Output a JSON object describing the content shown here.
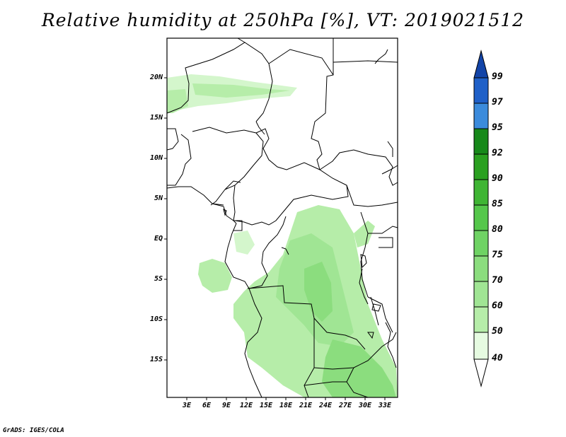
{
  "title": "Relative humidity at 250hPa [%], VT: 2019021512",
  "credit": "GrADS: IGES/COLA",
  "map": {
    "lat_labels": [
      "20N",
      "15N",
      "10N",
      "5N",
      "EQ",
      "5S",
      "10S",
      "15S"
    ],
    "lon_labels": [
      "3E",
      "6E",
      "9E",
      "12E",
      "15E",
      "18E",
      "21E",
      "24E",
      "27E",
      "30E",
      "33E"
    ]
  },
  "colorbar": {
    "levels": [
      "40",
      "50",
      "60",
      "70",
      "75",
      "80",
      "85",
      "90",
      "92",
      "95",
      "97",
      "99"
    ],
    "colors": [
      "#e6fbe1",
      "#d4f6cc",
      "#b6eda9",
      "#a0e594",
      "#8bdd7e",
      "#6fd364",
      "#55c74b",
      "#3fb534",
      "#2aa020",
      "#17891a",
      "#3b8bdc",
      "#1f60c8",
      "#1244a8"
    ]
  }
}
